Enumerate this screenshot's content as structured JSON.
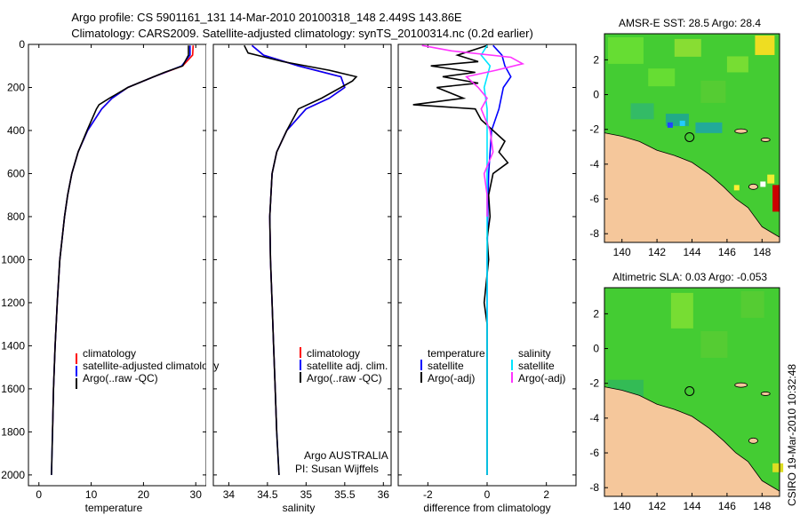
{
  "header": {
    "line1": "Argo profile: CS 5901161_131 14-Mar-2010 20100318_148 2.449S 143.86E",
    "line2": "Climatology: CARS2009. Satellite-adjusted climatology: synTS_20100314.nc (0.2d earlier)"
  },
  "side_label": "CSIRO 19-Mar-2010 10:32:48",
  "colors": {
    "red": "#ff0000",
    "blue": "#0000ff",
    "black": "#000000",
    "cyan": "#00ffff",
    "magenta": "#ff33ff",
    "land": "#f5c79b",
    "sea_green": "#33cc33"
  },
  "chart_data": [
    {
      "type": "line",
      "name": "temperature-panel",
      "xlabel": "temperature",
      "ylabel": "",
      "xlim": [
        -2,
        32
      ],
      "ylim": [
        2050,
        0
      ],
      "xticks": [
        0,
        10,
        20,
        30
      ],
      "yticks": [
        0,
        200,
        400,
        600,
        800,
        1000,
        1200,
        1400,
        1600,
        1800,
        2000
      ],
      "legend": [
        "climatology",
        "satellite-adjusted climatology",
        "Argo(..raw -QC)"
      ],
      "legend_loc": "lower-right",
      "series": [
        {
          "name": "climatology",
          "color": "#ff0000",
          "depth": [
            5,
            50,
            100,
            150,
            200,
            250,
            300,
            400,
            500,
            600,
            700,
            800,
            1000,
            1200,
            1400,
            1600,
            1800
          ],
          "values": [
            29.5,
            29.4,
            27.5,
            22,
            17,
            14,
            12,
            9.3,
            7.5,
            6.3,
            5.5,
            4.9,
            4.0,
            3.5,
            3.1,
            2.8,
            2.6
          ]
        },
        {
          "name": "satellite-adjusted climatology",
          "color": "#0000ff",
          "depth": [
            5,
            50,
            100,
            150,
            200,
            250,
            300,
            400,
            500,
            600,
            700,
            800,
            1000,
            1200,
            1400,
            1600,
            1800,
            2000
          ],
          "values": [
            28.9,
            28.9,
            27.3,
            22,
            17,
            14,
            12,
            9.3,
            7.5,
            6.3,
            5.5,
            4.9,
            4.0,
            3.5,
            3.1,
            2.8,
            2.6,
            2.4
          ]
        },
        {
          "name": "Argo(..raw -QC)",
          "color": "#000000",
          "depth": [
            5,
            50,
            100,
            130,
            160,
            200,
            250,
            280,
            300,
            400,
            500,
            600,
            700,
            800,
            1000,
            1200,
            1400,
            1600,
            1800,
            2000
          ],
          "values": [
            28.6,
            28.6,
            27.5,
            24,
            21,
            17,
            13.5,
            11.5,
            11,
            9.2,
            7.5,
            6.3,
            5.5,
            4.9,
            4.0,
            3.5,
            3.1,
            2.8,
            2.6,
            2.4
          ]
        }
      ]
    },
    {
      "type": "line",
      "name": "salinity-panel",
      "xlabel": "salinity",
      "ylabel": "",
      "xlim": [
        33.8,
        36.1
      ],
      "ylim": [
        2050,
        0
      ],
      "xticks": [
        34,
        34.5,
        35,
        35.5,
        36
      ],
      "legend": [
        "climatology",
        "satellite adj. clim.",
        "Argo(..raw -QC)"
      ],
      "legend_loc": "lower-right",
      "annotation": [
        "Argo AUSTRALIA",
        "PI: Susan Wijffels"
      ],
      "series": [
        {
          "name": "climatology",
          "color": "#ff0000",
          "depth": [
            5,
            50,
            100,
            150,
            200,
            250,
            300,
            400,
            500,
            600,
            800,
            1000,
            1200,
            1400,
            1600,
            1800
          ],
          "values": [
            34.3,
            34.45,
            34.9,
            35.45,
            35.5,
            35.3,
            35.0,
            34.75,
            34.62,
            34.56,
            34.53,
            34.54,
            34.56,
            34.58,
            34.6,
            34.62
          ]
        },
        {
          "name": "satellite adj. clim.",
          "color": "#0000ff",
          "depth": [
            5,
            50,
            100,
            150,
            200,
            250,
            300,
            400,
            500,
            600,
            800,
            1000,
            1200,
            1400,
            1600,
            1800,
            2000
          ],
          "values": [
            34.3,
            34.45,
            34.9,
            35.45,
            35.5,
            35.3,
            35.0,
            34.75,
            34.62,
            34.56,
            34.53,
            34.54,
            34.56,
            34.58,
            34.6,
            34.62,
            34.65
          ]
        },
        {
          "name": "Argo(..raw -QC)",
          "color": "#000000",
          "depth": [
            5,
            40,
            80,
            120,
            150,
            170,
            200,
            250,
            300,
            400,
            500,
            600,
            800,
            1000,
            1200,
            1400,
            1600,
            1800,
            2000
          ],
          "values": [
            34.2,
            34.25,
            34.7,
            35.3,
            35.65,
            35.6,
            35.45,
            35.2,
            34.9,
            34.75,
            34.62,
            34.56,
            34.53,
            34.54,
            34.56,
            34.58,
            34.6,
            34.62,
            34.65
          ]
        }
      ]
    },
    {
      "type": "line",
      "name": "difference-panel",
      "xlabel": "difference from climatology",
      "ylabel": "",
      "xlim": [
        -3,
        3
      ],
      "ylim": [
        2050,
        0
      ],
      "xticks": [
        -2,
        0,
        2
      ],
      "legend_headers": [
        "temperature",
        "salinity"
      ],
      "legend": [
        "satellite",
        "Argo(-adj)",
        "satellite",
        "Argo(-adj)"
      ],
      "legend_loc": "lower-middle",
      "series": [
        {
          "name": "temperature satellite",
          "color": "#0000ff",
          "depth": [
            5,
            50,
            100,
            150,
            200,
            300,
            400,
            600,
            800,
            1000,
            1500,
            2000
          ],
          "values": [
            0.2,
            0.5,
            0.6,
            0.8,
            0.55,
            0.4,
            0.15,
            0.05,
            0.02,
            0,
            0,
            0
          ]
        },
        {
          "name": "temperature Argo(-adj)",
          "color": "#000000",
          "depth": [
            5,
            50,
            80,
            100,
            130,
            150,
            180,
            200,
            250,
            280,
            300,
            350,
            400,
            450,
            500,
            550,
            600,
            700,
            800,
            900,
            1000,
            1200,
            1300,
            1500,
            2000
          ],
          "values": [
            0.0,
            -1.0,
            -0.3,
            -1.9,
            -0.4,
            -1.5,
            -0.3,
            -1.7,
            -0.8,
            -2.5,
            -0.4,
            -0.2,
            0.2,
            0.6,
            0.4,
            0.7,
            0.2,
            0.05,
            0.1,
            0.0,
            0.05,
            -0.1,
            0.0,
            0.0,
            0.0
          ]
        },
        {
          "name": "salinity satellite",
          "color": "#00e5ff",
          "depth": [
            5,
            50,
            100,
            200,
            300,
            400,
            600,
            800,
            1000,
            2000
          ],
          "values": [
            0.0,
            -0.2,
            0.1,
            -0.1,
            0.0,
            0.0,
            0.0,
            0.0,
            0.0,
            0.0
          ]
        },
        {
          "name": "salinity Argo(-adj)",
          "color": "#ff33ff",
          "depth": [
            5,
            30,
            60,
            90,
            120,
            150,
            200,
            250,
            300,
            400,
            500,
            600,
            700,
            800
          ],
          "values": [
            -2.2,
            -1.2,
            0.8,
            1.2,
            0.3,
            -0.7,
            -0.3,
            0.0,
            -0.2,
            0.1,
            0.2,
            -0.1,
            0.0,
            0.0
          ]
        }
      ]
    },
    {
      "type": "heatmap",
      "name": "sst-map",
      "title": "AMSR-E SST: 28.5 Argo: 28.4",
      "xticks": [
        140,
        142,
        144,
        146,
        148
      ],
      "yticks": [
        2,
        0,
        -2,
        -4,
        -6,
        -8
      ],
      "xlim": [
        139,
        149
      ],
      "ylim": [
        -8.5,
        3.5
      ],
      "argo_position": [
        143.86,
        -2.449
      ]
    },
    {
      "type": "heatmap",
      "name": "sla-map",
      "title": "Altimetric SLA: 0.03 Argo: -0.053",
      "xticks": [
        140,
        142,
        144,
        146,
        148
      ],
      "yticks": [
        2,
        0,
        -2,
        -4,
        -6,
        -8
      ],
      "xlim": [
        139,
        149
      ],
      "ylim": [
        -8.5,
        3.5
      ],
      "argo_position": [
        143.86,
        -2.449
      ]
    }
  ]
}
